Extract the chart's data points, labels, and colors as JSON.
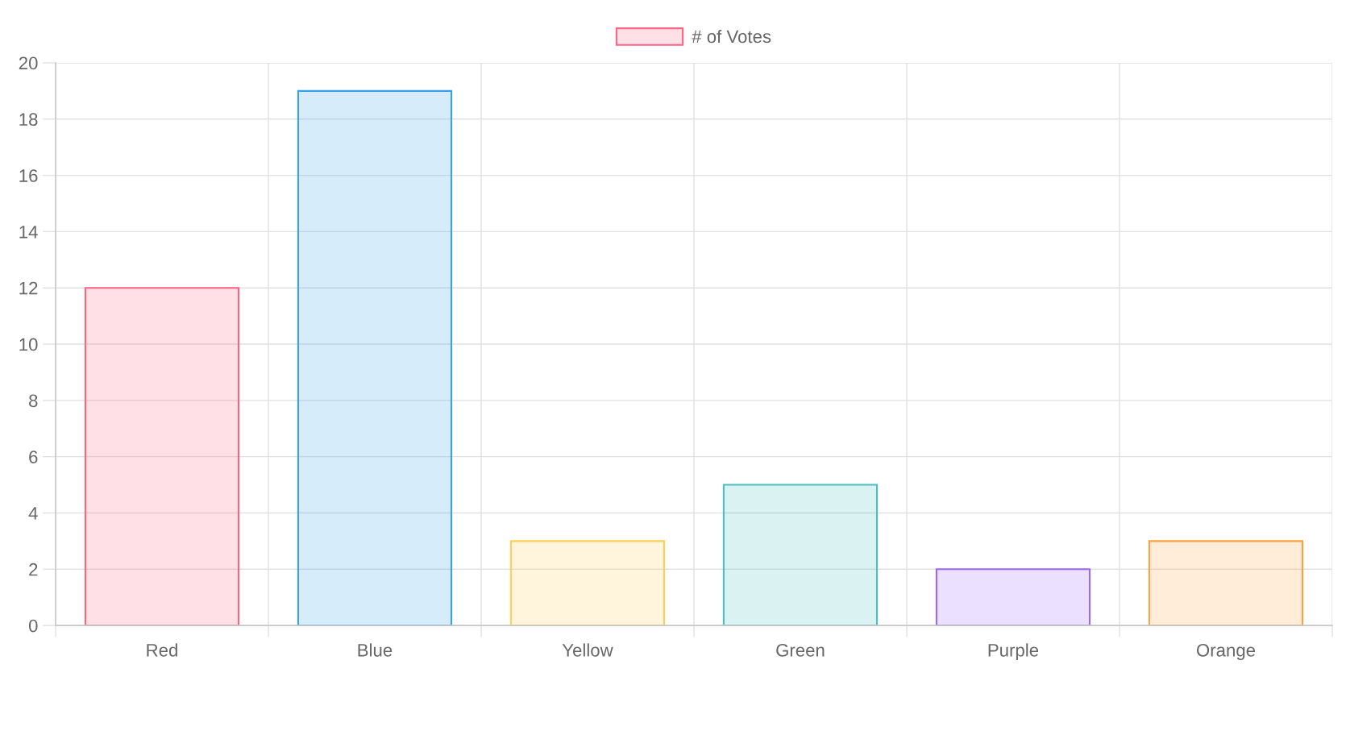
{
  "chart_data": {
    "type": "bar",
    "categories": [
      "Red",
      "Blue",
      "Yellow",
      "Green",
      "Purple",
      "Orange"
    ],
    "series": [
      {
        "name": "# of Votes",
        "values": [
          12,
          19,
          3,
          5,
          2,
          3
        ],
        "colors": [
          "#ff6384",
          "#36a2eb",
          "#ffce56",
          "#4bc0c0",
          "#9966ff",
          "#ff9f40"
        ]
      }
    ],
    "ylim": [
      0,
      20
    ],
    "yticks": [
      0,
      2,
      4,
      6,
      8,
      10,
      12,
      14,
      16,
      18,
      20
    ],
    "grid": true,
    "legend": "top"
  }
}
